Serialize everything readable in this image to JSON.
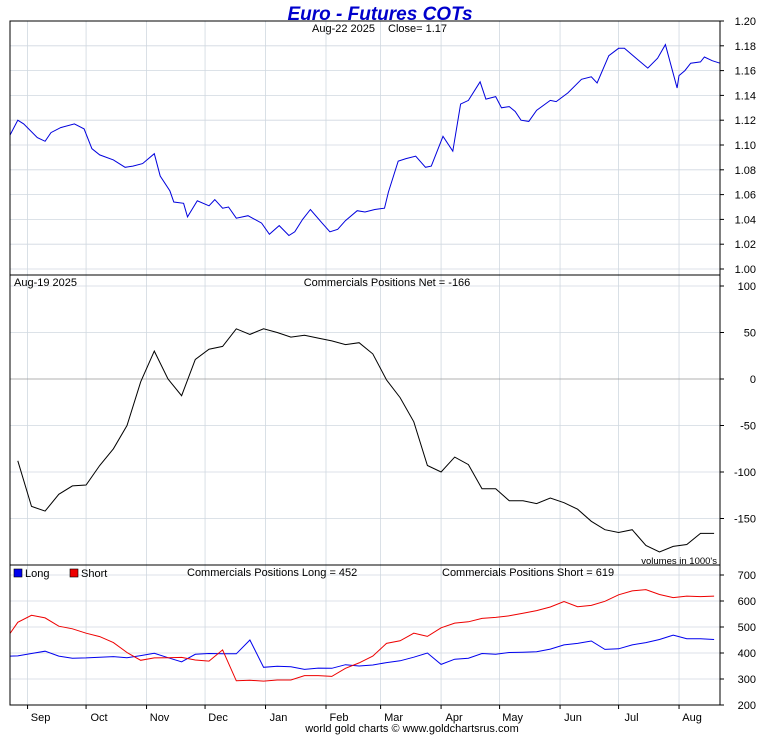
{
  "header": {
    "title": "Euro - Futures COTs",
    "price_date": "Aug-22  2025",
    "close_label": "Close= 1.17",
    "footer": "world gold charts © www.goldchartsrus.com"
  },
  "colors": {
    "price": "#0000dd",
    "net": "#000000",
    "long": "#0000ee",
    "short": "#ee0000",
    "grid": "#d0d8e0",
    "title": "#0000cc"
  },
  "chart_data": [
    {
      "type": "line",
      "panel": "price",
      "subtitle": "Aug-22  2025   Close= 1.17",
      "ylim": [
        1.0,
        1.2
      ],
      "y_ticks": [
        "1.00",
        "1.02",
        "1.04",
        "1.06",
        "1.08",
        "1.10",
        "1.12",
        "1.14",
        "1.16",
        "1.18",
        "1.20"
      ],
      "x_range": [
        "2024-08-23",
        "2025-08-22"
      ],
      "series": [
        {
          "x": [
            "2024-08-23",
            "2024-08-27",
            "2024-08-30",
            "2024-09-06",
            "2024-09-10",
            "2024-09-13",
            "2024-09-18",
            "2024-09-25",
            "2024-09-30",
            "2024-10-04",
            "2024-10-08",
            "2024-10-15",
            "2024-10-21",
            "2024-10-25",
            "2024-10-30",
            "2024-11-05",
            "2024-11-08",
            "2024-11-13",
            "2024-11-15",
            "2024-11-20",
            "2024-11-22",
            "2024-11-27",
            "2024-12-03",
            "2024-12-06",
            "2024-12-10",
            "2024-12-13",
            "2024-12-17",
            "2024-12-23",
            "2024-12-30",
            "2025-01-03",
            "2025-01-08",
            "2025-01-13",
            "2025-01-16",
            "2025-01-20",
            "2025-01-24",
            "2025-01-30",
            "2025-02-03",
            "2025-02-07",
            "2025-02-11",
            "2025-02-17",
            "2025-02-21",
            "2025-02-26",
            "2025-03-03",
            "2025-03-05",
            "2025-03-10",
            "2025-03-14",
            "2025-03-19",
            "2025-03-24",
            "2025-03-27",
            "2025-04-02",
            "2025-04-07",
            "2025-04-11",
            "2025-04-15",
            "2025-04-21",
            "2025-04-24",
            "2025-04-29",
            "2025-05-02",
            "2025-05-06",
            "2025-05-09",
            "2025-05-12",
            "2025-05-16",
            "2025-05-20",
            "2025-05-27",
            "2025-05-30",
            "2025-06-05",
            "2025-06-12",
            "2025-06-17",
            "2025-06-20",
            "2025-06-26",
            "2025-07-01",
            "2025-07-04",
            "2025-07-10",
            "2025-07-16",
            "2025-07-21",
            "2025-07-25",
            "2025-07-31",
            "2025-08-01",
            "2025-08-04",
            "2025-08-07",
            "2025-08-12",
            "2025-08-14",
            "2025-08-18",
            "2025-08-22"
          ],
          "y": [
            1.108,
            1.12,
            1.117,
            1.106,
            1.103,
            1.11,
            1.114,
            1.117,
            1.113,
            1.097,
            1.092,
            1.088,
            1.082,
            1.083,
            1.085,
            1.093,
            1.075,
            1.063,
            1.054,
            1.053,
            1.042,
            1.055,
            1.051,
            1.056,
            1.049,
            1.05,
            1.041,
            1.043,
            1.037,
            1.028,
            1.035,
            1.027,
            1.03,
            1.04,
            1.048,
            1.037,
            1.03,
            1.032,
            1.039,
            1.047,
            1.046,
            1.048,
            1.049,
            1.062,
            1.087,
            1.089,
            1.091,
            1.082,
            1.083,
            1.107,
            1.095,
            1.133,
            1.136,
            1.151,
            1.137,
            1.139,
            1.13,
            1.131,
            1.127,
            1.12,
            1.119,
            1.128,
            1.136,
            1.135,
            1.142,
            1.153,
            1.155,
            1.15,
            1.172,
            1.178,
            1.178,
            1.17,
            1.162,
            1.17,
            1.181,
            1.146,
            1.156,
            1.16,
            1.166,
            1.167,
            1.171,
            1.168,
            1.166
          ]
        }
      ]
    },
    {
      "type": "line",
      "panel": "net",
      "date_label": "Aug-19  2025",
      "title": "Commercials Positions Net = -166",
      "ylim": [
        -200,
        100
      ],
      "y_ticks": [
        "-150",
        "-100",
        "-50",
        "0",
        "50",
        "100"
      ],
      "x_range": [
        "2024-08-23",
        "2025-08-22"
      ],
      "series": [
        {
          "x": [
            "2024-08-27",
            "2024-09-03",
            "2024-09-10",
            "2024-09-17",
            "2024-09-24",
            "2024-10-01",
            "2024-10-08",
            "2024-10-15",
            "2024-10-22",
            "2024-10-29",
            "2024-11-05",
            "2024-11-12",
            "2024-11-19",
            "2024-11-26",
            "2024-12-03",
            "2024-12-10",
            "2024-12-17",
            "2024-12-24",
            "2024-12-31",
            "2025-01-07",
            "2025-01-14",
            "2025-01-21",
            "2025-01-28",
            "2025-02-04",
            "2025-02-11",
            "2025-02-18",
            "2025-02-25",
            "2025-03-04",
            "2025-03-11",
            "2025-03-18",
            "2025-03-25",
            "2025-04-01",
            "2025-04-08",
            "2025-04-15",
            "2025-04-22",
            "2025-04-29",
            "2025-05-06",
            "2025-05-13",
            "2025-05-20",
            "2025-05-27",
            "2025-06-03",
            "2025-06-10",
            "2025-06-17",
            "2025-06-24",
            "2025-07-01",
            "2025-07-08",
            "2025-07-15",
            "2025-07-22",
            "2025-07-29",
            "2025-08-05",
            "2025-08-12",
            "2025-08-19"
          ],
          "y": [
            -88,
            -137,
            -142,
            -124,
            -115,
            -114,
            -93,
            -75,
            -50,
            -3,
            30,
            0,
            -18,
            21,
            32,
            35,
            54,
            48,
            54,
            50,
            45,
            47,
            44,
            41,
            37,
            39,
            27,
            -1,
            -20,
            -46,
            -93,
            -100,
            -84,
            -92,
            -118,
            -118,
            -131,
            -131,
            -134,
            -128,
            -133,
            -140,
            -153,
            -162,
            -165,
            -162,
            -179,
            -186,
            -180,
            -178,
            -166,
            -166
          ]
        }
      ]
    },
    {
      "type": "line",
      "panel": "long-short",
      "title_long": "Commercials Positions Long = 452",
      "title_short": "Commercials Positions Short = 619",
      "volume_note": "volumes in 1000's",
      "ylim": [
        200,
        700
      ],
      "y_ticks": [
        "200",
        "300",
        "400",
        "500",
        "600",
        "700"
      ],
      "x_range": [
        "2024-08-23",
        "2025-08-22"
      ],
      "month_labels": [
        {
          "label": "Sep",
          "date": "2024-09-01"
        },
        {
          "label": "Oct",
          "date": "2024-10-01"
        },
        {
          "label": "Nov",
          "date": "2024-11-01"
        },
        {
          "label": "Dec",
          "date": "2024-12-01"
        },
        {
          "label": "Jan",
          "date": "2025-01-01"
        },
        {
          "label": "Feb",
          "date": "2025-02-01"
        },
        {
          "label": "Mar",
          "date": "2025-03-01"
        },
        {
          "label": "Apr",
          "date": "2025-04-01"
        },
        {
          "label": "May",
          "date": "2025-05-01"
        },
        {
          "label": "Jun",
          "date": "2025-06-01"
        },
        {
          "label": "Jul",
          "date": "2025-07-01"
        },
        {
          "label": "Aug",
          "date": "2025-08-01"
        }
      ],
      "x": [
        "2024-08-23",
        "2024-08-27",
        "2024-09-03",
        "2024-09-10",
        "2024-09-17",
        "2024-09-24",
        "2024-10-01",
        "2024-10-08",
        "2024-10-15",
        "2024-10-22",
        "2024-10-29",
        "2024-11-05",
        "2024-11-12",
        "2024-11-19",
        "2024-11-26",
        "2024-12-03",
        "2024-12-10",
        "2024-12-17",
        "2024-12-24",
        "2024-12-31",
        "2025-01-07",
        "2025-01-14",
        "2025-01-21",
        "2025-01-28",
        "2025-02-04",
        "2025-02-11",
        "2025-02-18",
        "2025-02-25",
        "2025-03-04",
        "2025-03-11",
        "2025-03-18",
        "2025-03-25",
        "2025-04-01",
        "2025-04-08",
        "2025-04-15",
        "2025-04-22",
        "2025-04-29",
        "2025-05-06",
        "2025-05-13",
        "2025-05-20",
        "2025-05-27",
        "2025-06-03",
        "2025-06-10",
        "2025-06-17",
        "2025-06-24",
        "2025-07-01",
        "2025-07-08",
        "2025-07-15",
        "2025-07-22",
        "2025-07-29",
        "2025-08-05",
        "2025-08-12",
        "2025-08-19"
      ],
      "series": [
        {
          "name": "Long",
          "y": [
            388,
            389,
            398,
            407,
            388,
            380,
            381,
            384,
            386,
            382,
            390,
            399,
            382,
            366,
            395,
            398,
            397,
            397,
            450,
            345,
            349,
            347,
            337,
            342,
            341,
            355,
            350,
            354,
            363,
            370,
            384,
            400,
            356,
            376,
            380,
            398,
            395,
            402,
            403,
            405,
            415,
            431,
            437,
            446,
            414,
            416,
            431,
            440,
            452,
            469,
            455,
            455,
            452
          ]
        },
        {
          "name": "Short",
          "y": [
            475,
            518,
            545,
            535,
            503,
            493,
            476,
            463,
            440,
            402,
            372,
            381,
            382,
            383,
            373,
            369,
            412,
            293,
            295,
            292,
            296,
            296,
            313,
            313,
            310,
            341,
            362,
            388,
            437,
            447,
            476,
            464,
            497,
            515,
            520,
            533,
            537,
            543,
            553,
            563,
            577,
            598,
            578,
            583,
            599,
            624,
            639,
            644,
            625,
            613,
            619,
            617,
            619
          ]
        }
      ]
    }
  ]
}
